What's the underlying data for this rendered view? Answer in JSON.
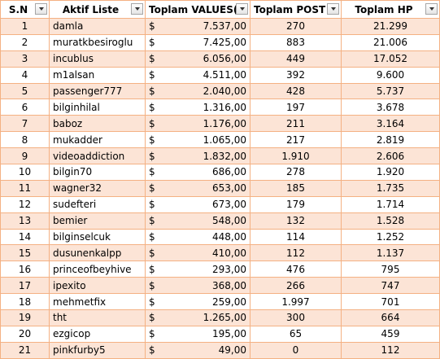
{
  "columns": [
    {
      "key": "sn",
      "label": "S.N"
    },
    {
      "key": "name",
      "label": "Aktif Liste"
    },
    {
      "key": "values",
      "label": "Toplam VALUES($"
    },
    {
      "key": "post",
      "label": "Toplam POST"
    },
    {
      "key": "hp",
      "label": "Toplam HP"
    }
  ],
  "currency_symbol": "$",
  "colors": {
    "border": "#f4b183",
    "band": "#fce4d6"
  },
  "rows": [
    {
      "sn": "1",
      "name": "damla",
      "values": "7.537,00",
      "post": "270",
      "hp": "21.299"
    },
    {
      "sn": "2",
      "name": "muratkbesiroglu",
      "values": "7.425,00",
      "post": "883",
      "hp": "21.006"
    },
    {
      "sn": "3",
      "name": "incublus",
      "values": "6.056,00",
      "post": "449",
      "hp": "17.052"
    },
    {
      "sn": "4",
      "name": "m1alsan",
      "values": "4.511,00",
      "post": "392",
      "hp": "9.600"
    },
    {
      "sn": "5",
      "name": "passenger777",
      "values": "2.040,00",
      "post": "428",
      "hp": "5.737"
    },
    {
      "sn": "6",
      "name": "bilginhilal",
      "values": "1.316,00",
      "post": "197",
      "hp": "3.678"
    },
    {
      "sn": "7",
      "name": "baboz",
      "values": "1.176,00",
      "post": "211",
      "hp": "3.164"
    },
    {
      "sn": "8",
      "name": "mukadder",
      "values": "1.065,00",
      "post": "217",
      "hp": "2.819"
    },
    {
      "sn": "9",
      "name": "videoaddiction",
      "values": "1.832,00",
      "post": "1.910",
      "hp": "2.606"
    },
    {
      "sn": "10",
      "name": "bilgin70",
      "values": "686,00",
      "post": "278",
      "hp": "1.920"
    },
    {
      "sn": "11",
      "name": "wagner32",
      "values": "653,00",
      "post": "185",
      "hp": "1.735"
    },
    {
      "sn": "12",
      "name": "sudefteri",
      "values": "673,00",
      "post": "179",
      "hp": "1.714"
    },
    {
      "sn": "13",
      "name": "bemier",
      "values": "548,00",
      "post": "132",
      "hp": "1.528"
    },
    {
      "sn": "14",
      "name": "bilginselcuk",
      "values": "448,00",
      "post": "114",
      "hp": "1.252"
    },
    {
      "sn": "15",
      "name": "dusunenkalpp",
      "values": "410,00",
      "post": "112",
      "hp": "1.137"
    },
    {
      "sn": "16",
      "name": "princeofbeyhive",
      "values": "293,00",
      "post": "476",
      "hp": "795"
    },
    {
      "sn": "17",
      "name": "ipexito",
      "values": "368,00",
      "post": "266",
      "hp": "747"
    },
    {
      "sn": "18",
      "name": "mehmetfix",
      "values": "259,00",
      "post": "1.997",
      "hp": "701"
    },
    {
      "sn": "19",
      "name": "tht",
      "values": "1.265,00",
      "post": "300",
      "hp": "664"
    },
    {
      "sn": "20",
      "name": "ezgicop",
      "values": "195,00",
      "post": "65",
      "hp": "459"
    },
    {
      "sn": "21",
      "name": "pinkfurby5",
      "values": "49,00",
      "post": "0",
      "hp": "112"
    }
  ]
}
